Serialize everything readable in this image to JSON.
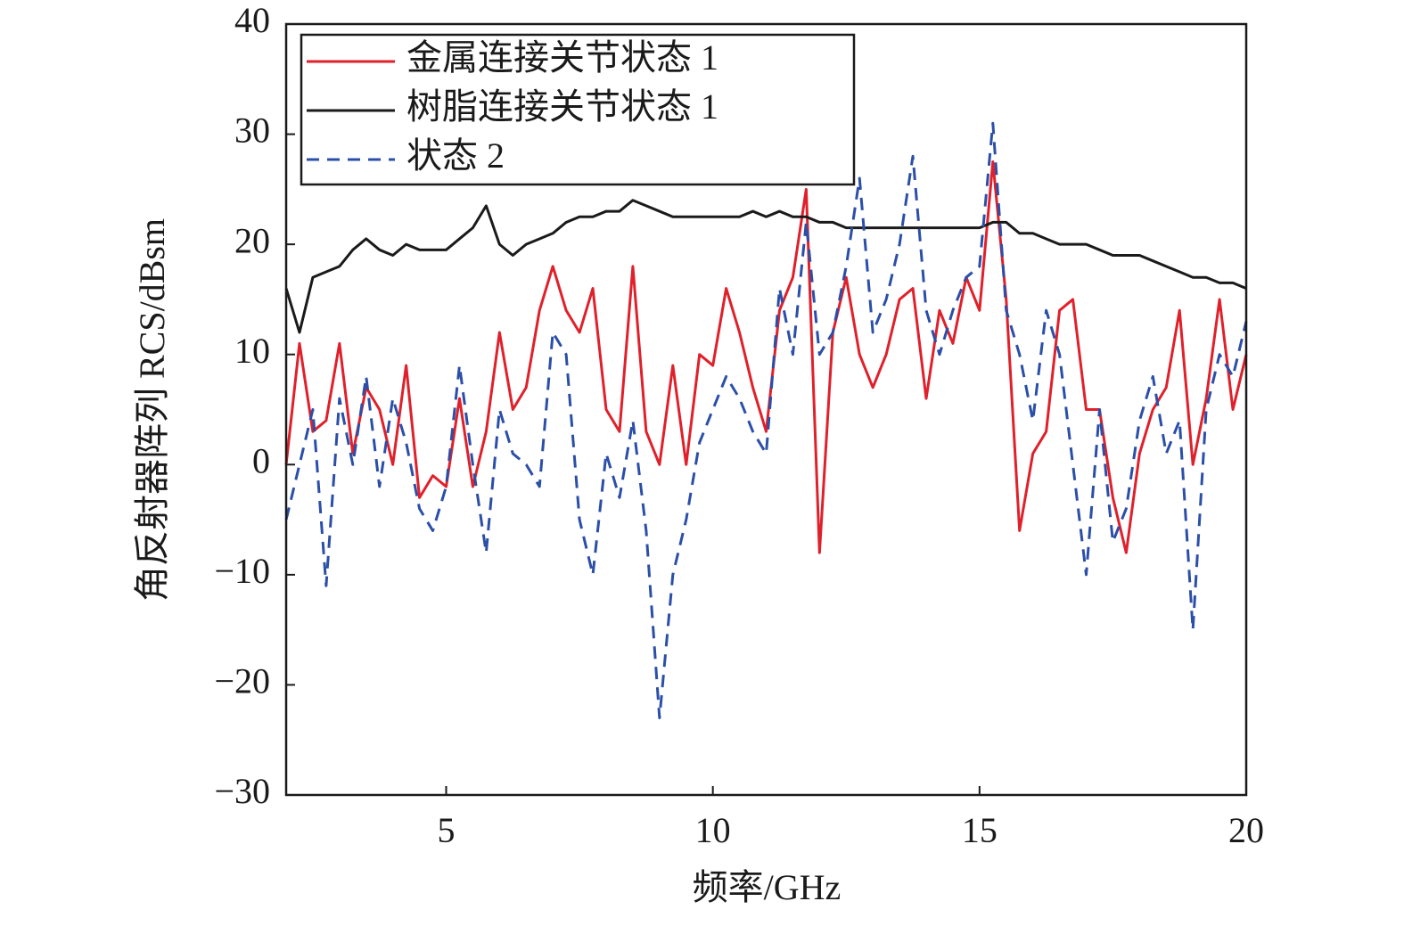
{
  "chart_data": {
    "type": "line",
    "xlabel": "频率/GHz",
    "ylabel": "角反射器阵列 RCS/dBsm",
    "xlim": [
      2,
      20
    ],
    "xticks": [
      5,
      10,
      15,
      20
    ],
    "ylim": [
      -30,
      40
    ],
    "yticks": [
      {
        "value": -30,
        "label": "−30"
      },
      {
        "value": -20,
        "label": "−20"
      },
      {
        "value": -10,
        "label": "−10"
      },
      0,
      10,
      20,
      30,
      40
    ],
    "legend": "upper left",
    "x": [
      2,
      2.25,
      2.5,
      2.75,
      3,
      3.25,
      3.5,
      3.75,
      4,
      4.25,
      4.5,
      4.75,
      5,
      5.25,
      5.5,
      5.75,
      6,
      6.25,
      6.5,
      6.75,
      7,
      7.25,
      7.5,
      7.75,
      8,
      8.25,
      8.5,
      8.75,
      9,
      9.25,
      9.5,
      9.75,
      10,
      10.25,
      10.5,
      10.75,
      11,
      11.25,
      11.5,
      11.75,
      12,
      12.25,
      12.5,
      12.75,
      13,
      13.25,
      13.5,
      13.75,
      14,
      14.25,
      14.5,
      14.75,
      15,
      15.25,
      15.5,
      15.75,
      16,
      16.25,
      16.5,
      16.75,
      17,
      17.25,
      17.5,
      17.75,
      18,
      18.25,
      18.5,
      18.75,
      19,
      19.25,
      19.5,
      19.75,
      20
    ],
    "series": [
      {
        "name": "金属连接关节状态 1",
        "color": "#e0202a",
        "style": "solid",
        "values": [
          0,
          11,
          3,
          4,
          11,
          1,
          7,
          5,
          0,
          9,
          -3,
          -1,
          -2,
          6,
          -2,
          3,
          12,
          5,
          7,
          14,
          18,
          14,
          12,
          16,
          5,
          3,
          18,
          3,
          0,
          9,
          0,
          10,
          9,
          16,
          12,
          7,
          3,
          14,
          17,
          25,
          -8,
          12,
          17,
          10,
          7,
          10,
          15,
          16,
          6,
          14,
          11,
          17,
          14,
          27.5,
          15,
          -6,
          1,
          3,
          14,
          15,
          5,
          5,
          -3,
          -8,
          1,
          5,
          7,
          14,
          0,
          6,
          15,
          5,
          10
        ]
      },
      {
        "name": "树脂连接关节状态 1",
        "color": "#1a1a1a",
        "style": "solid",
        "values": [
          16,
          12,
          17,
          17.5,
          18,
          19.5,
          20.5,
          19.5,
          19,
          20,
          19.5,
          19.5,
          19.5,
          20.5,
          21.5,
          23.5,
          20,
          19,
          20,
          20.5,
          21,
          22,
          22.5,
          22.5,
          23,
          23,
          24,
          23.5,
          23,
          22.5,
          22.5,
          22.5,
          22.5,
          22.5,
          22.5,
          23,
          22.5,
          23,
          22.5,
          22.5,
          22,
          22,
          21.5,
          21.5,
          21.5,
          21.5,
          21.5,
          21.5,
          21.5,
          21.5,
          21.5,
          21.5,
          21.5,
          22,
          22,
          21,
          21,
          20.5,
          20,
          20,
          20,
          19.5,
          19,
          19,
          19,
          18.5,
          18,
          17.5,
          17,
          17,
          16.5,
          16.5,
          16
        ]
      },
      {
        "name": "状态 2",
        "color": "#2b4fa8",
        "style": "dashed",
        "values": [
          -5,
          0,
          5,
          -11,
          6,
          0,
          8,
          -2,
          6,
          2,
          -4,
          -6,
          -2,
          9,
          0,
          -8,
          5,
          1,
          0,
          -2,
          12,
          10,
          -5,
          -10,
          1,
          -3,
          4,
          -6,
          -23,
          -10,
          -5,
          2,
          5,
          8,
          6,
          3,
          1,
          16,
          10,
          22,
          10,
          12,
          18,
          26,
          12,
          15,
          20,
          28,
          14,
          10,
          14,
          17,
          18,
          31,
          14,
          10,
          4,
          14,
          10,
          0,
          -10,
          5,
          -7,
          -4,
          4,
          8,
          1,
          4,
          -15,
          5,
          10,
          8,
          13
        ]
      }
    ]
  }
}
